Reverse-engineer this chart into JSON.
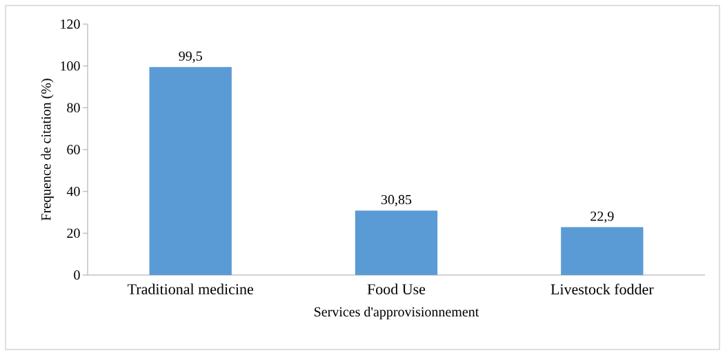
{
  "chart_data": {
    "type": "bar",
    "xlabel": "Services d'approvisionnement",
    "ylabel": "Frequence de citation (%)",
    "categories": [
      "Traditional medicine",
      "Food Use",
      "Livestock fodder"
    ],
    "values": [
      99.5,
      30.85,
      22.9
    ],
    "value_labels": [
      "99,5",
      "30,85",
      "22,9"
    ],
    "color": "#5b9bd5",
    "ylim": [
      0,
      120
    ],
    "yticks": [
      0,
      20,
      40,
      60,
      80,
      100,
      120
    ]
  }
}
